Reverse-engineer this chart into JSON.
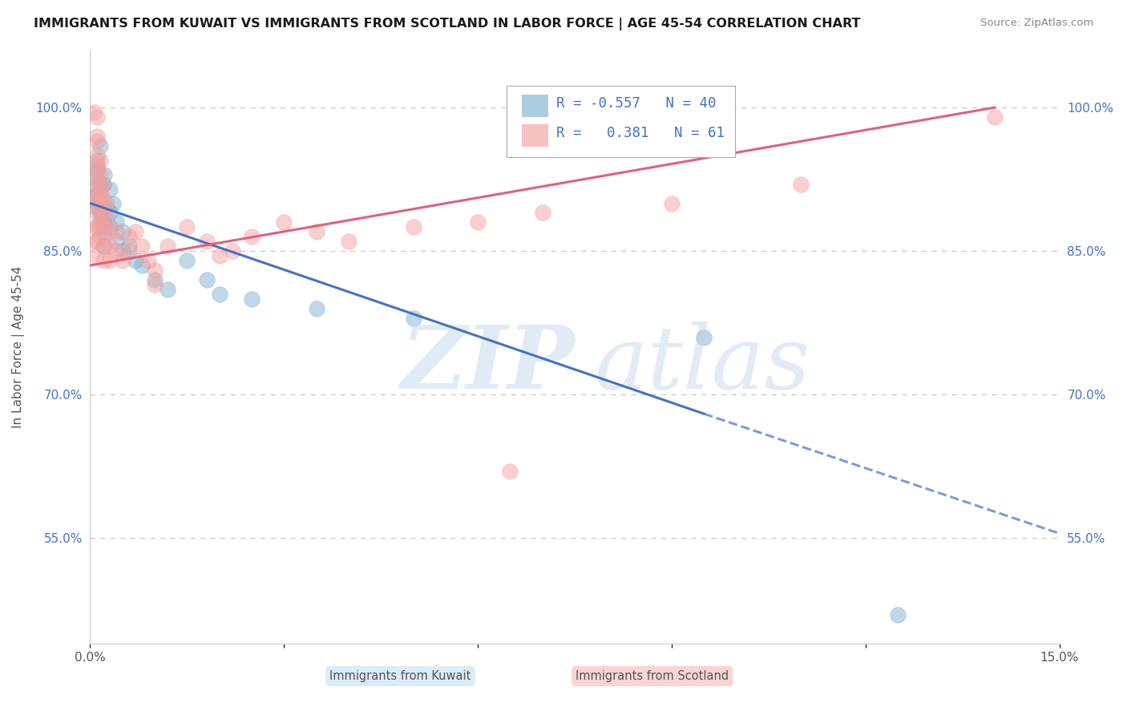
{
  "title": "IMMIGRANTS FROM KUWAIT VS IMMIGRANTS FROM SCOTLAND IN LABOR FORCE | AGE 45-54 CORRELATION CHART",
  "source": "Source: ZipAtlas.com",
  "ylabel": "In Labor Force | Age 45-54",
  "xlim": [
    0.0,
    0.15
  ],
  "ylim": [
    0.44,
    1.06
  ],
  "x_ticks": [
    0.0,
    0.03,
    0.06,
    0.09,
    0.12,
    0.15
  ],
  "x_tick_labels": [
    "0.0%",
    "",
    "",
    "",
    "",
    "15.0%"
  ],
  "y_ticks": [
    0.55,
    0.7,
    0.85,
    1.0
  ],
  "y_tick_labels": [
    "55.0%",
    "70.0%",
    "85.0%",
    "100.0%"
  ],
  "legend_r_kuwait": "-0.557",
  "legend_n_kuwait": "40",
  "legend_r_scotland": "0.381",
  "legend_n_scotland": "61",
  "kuwait_color": "#7FB3D3",
  "scotland_color": "#F4A0A0",
  "kuwait_line_color": "#4472C4",
  "scotland_line_color": "#E06080",
  "background_color": "#FFFFFF",
  "grid_color": "#C8C8C8",
  "kuwait_points": [
    [
      0.0008,
      0.93
    ],
    [
      0.0008,
      0.915
    ],
    [
      0.001,
      0.945
    ],
    [
      0.001,
      0.935
    ],
    [
      0.001,
      0.91
    ],
    [
      0.001,
      0.895
    ],
    [
      0.0012,
      0.9
    ],
    [
      0.0014,
      0.875
    ],
    [
      0.0015,
      0.96
    ],
    [
      0.0015,
      0.92
    ],
    [
      0.0015,
      0.905
    ],
    [
      0.0015,
      0.89
    ],
    [
      0.0018,
      0.885
    ],
    [
      0.002,
      0.87
    ],
    [
      0.002,
      0.855
    ],
    [
      0.002,
      0.92
    ],
    [
      0.002,
      0.88
    ],
    [
      0.0022,
      0.93
    ],
    [
      0.0025,
      0.895
    ],
    [
      0.003,
      0.915
    ],
    [
      0.003,
      0.89
    ],
    [
      0.003,
      0.875
    ],
    [
      0.0035,
      0.9
    ],
    [
      0.004,
      0.88
    ],
    [
      0.004,
      0.86
    ],
    [
      0.005,
      0.87
    ],
    [
      0.005,
      0.85
    ],
    [
      0.006,
      0.855
    ],
    [
      0.007,
      0.84
    ],
    [
      0.008,
      0.835
    ],
    [
      0.01,
      0.82
    ],
    [
      0.012,
      0.81
    ],
    [
      0.015,
      0.84
    ],
    [
      0.018,
      0.82
    ],
    [
      0.02,
      0.805
    ],
    [
      0.025,
      0.8
    ],
    [
      0.035,
      0.79
    ],
    [
      0.05,
      0.78
    ],
    [
      0.095,
      0.76
    ],
    [
      0.125,
      0.47
    ]
  ],
  "scotland_points": [
    [
      0.0005,
      0.995
    ],
    [
      0.001,
      0.99
    ],
    [
      0.001,
      0.97
    ],
    [
      0.0008,
      0.875
    ],
    [
      0.0008,
      0.86
    ],
    [
      0.0008,
      0.845
    ],
    [
      0.001,
      0.965
    ],
    [
      0.001,
      0.95
    ],
    [
      0.001,
      0.94
    ],
    [
      0.001,
      0.925
    ],
    [
      0.001,
      0.91
    ],
    [
      0.001,
      0.9
    ],
    [
      0.001,
      0.89
    ],
    [
      0.001,
      0.875
    ],
    [
      0.001,
      0.86
    ],
    [
      0.0012,
      0.935
    ],
    [
      0.0012,
      0.92
    ],
    [
      0.0012,
      0.905
    ],
    [
      0.0015,
      0.945
    ],
    [
      0.0015,
      0.93
    ],
    [
      0.0015,
      0.91
    ],
    [
      0.0015,
      0.895
    ],
    [
      0.0015,
      0.88
    ],
    [
      0.0015,
      0.865
    ],
    [
      0.002,
      0.92
    ],
    [
      0.002,
      0.905
    ],
    [
      0.002,
      0.89
    ],
    [
      0.002,
      0.875
    ],
    [
      0.002,
      0.855
    ],
    [
      0.002,
      0.84
    ],
    [
      0.0025,
      0.9
    ],
    [
      0.0025,
      0.885
    ],
    [
      0.003,
      0.87
    ],
    [
      0.003,
      0.855
    ],
    [
      0.003,
      0.84
    ],
    [
      0.004,
      0.87
    ],
    [
      0.004,
      0.85
    ],
    [
      0.005,
      0.84
    ],
    [
      0.006,
      0.865
    ],
    [
      0.006,
      0.85
    ],
    [
      0.007,
      0.87
    ],
    [
      0.008,
      0.855
    ],
    [
      0.009,
      0.84
    ],
    [
      0.01,
      0.83
    ],
    [
      0.01,
      0.815
    ],
    [
      0.012,
      0.855
    ],
    [
      0.015,
      0.875
    ],
    [
      0.018,
      0.86
    ],
    [
      0.02,
      0.845
    ],
    [
      0.022,
      0.85
    ],
    [
      0.025,
      0.865
    ],
    [
      0.03,
      0.88
    ],
    [
      0.035,
      0.87
    ],
    [
      0.04,
      0.86
    ],
    [
      0.05,
      0.875
    ],
    [
      0.06,
      0.88
    ],
    [
      0.065,
      0.62
    ],
    [
      0.07,
      0.89
    ],
    [
      0.09,
      0.9
    ],
    [
      0.11,
      0.92
    ],
    [
      0.14,
      0.99
    ]
  ]
}
